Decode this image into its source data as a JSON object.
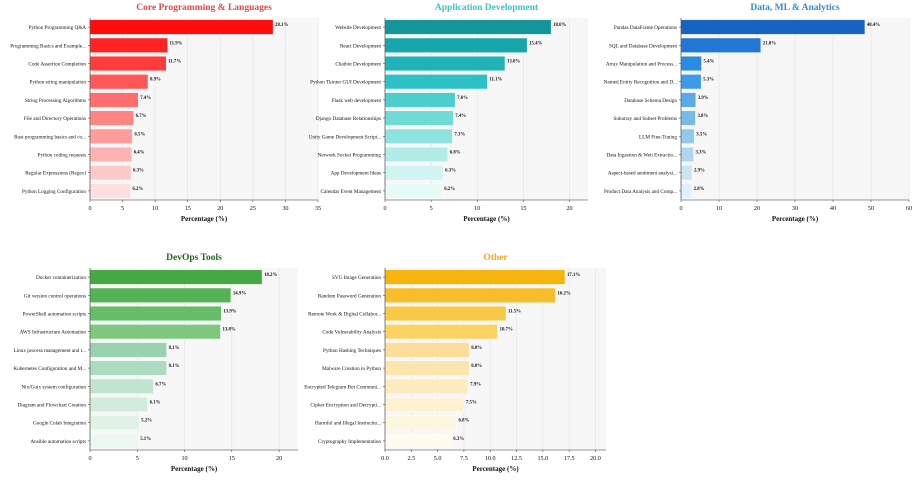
{
  "chart_data": [
    {
      "type": "bar",
      "orientation": "horizontal",
      "title": "Core Programming & Languages",
      "title_color": "#e8474a",
      "xlabel": "Percentage (%)",
      "xlim": [
        0,
        35
      ],
      "xticks": [
        "0",
        "5",
        "10",
        "15",
        "20",
        "25",
        "30",
        "35"
      ],
      "tick_values": [
        0,
        5,
        10,
        15,
        20,
        25,
        30,
        35
      ],
      "categories": [
        "Python Programming Q&A",
        "Programming Basics and Example...",
        "Code Assertion Completion",
        "Python string manipulation",
        "String Processing Algorithms",
        "File and Directory Operations",
        "Rust programming basics and co...",
        "Python coding requests",
        "Regular Expressions (Regex)",
        "Python Logging Configuration"
      ],
      "values": [
        28.1,
        11.9,
        11.7,
        8.9,
        7.4,
        6.7,
        6.5,
        6.4,
        6.3,
        6.2
      ],
      "labels": [
        "28.1%",
        "11.9%",
        "11.7%",
        "8.9%",
        "7.4%",
        "6.7%",
        "6.5%",
        "6.4%",
        "6.3%",
        "6.2%"
      ],
      "colors": [
        "#ff0d0d",
        "#ff2323",
        "#ff3b3b",
        "#ff5757",
        "#ff6e6e",
        "#ff8484",
        "#ff9c9c",
        "#ffb2b2",
        "#ffc9c9",
        "#ffdede"
      ],
      "grid": true
    },
    {
      "type": "bar",
      "orientation": "horizontal",
      "title": "Application Development",
      "title_color": "#3cc4c8",
      "xlabel": "Percentage (%)",
      "xlim": [
        0,
        22
      ],
      "xticks": [
        "0",
        "5",
        "10",
        "15",
        "20"
      ],
      "tick_values": [
        0,
        5,
        10,
        15,
        20
      ],
      "categories": [
        "Website Development",
        "React Development",
        "Chatbot Development",
        "Python Tkinter GUI Development",
        "Flask web development",
        "Django Database Relationships",
        "Unity Game Development Script...",
        "Network Socket Programming",
        "App Development Ideas",
        "Calendar Event Management"
      ],
      "values": [
        18.0,
        15.4,
        13.0,
        11.1,
        7.6,
        7.4,
        7.3,
        6.8,
        6.3,
        6.2
      ],
      "labels": [
        "18.0%",
        "15.4%",
        "13.0%",
        "11.1%",
        "7.6%",
        "7.4%",
        "7.3%",
        "6.8%",
        "6.3%",
        "6.2%"
      ],
      "colors": [
        "#13969b",
        "#17a6ab",
        "#1fb3b8",
        "#2dc1c5",
        "#4ccfcc",
        "#6fdbd6",
        "#8fe3de",
        "#b0ece8",
        "#cff4f1",
        "#e6faf8"
      ],
      "grid": true
    },
    {
      "type": "bar",
      "orientation": "horizontal",
      "title": "Data, ML & Analytics",
      "title_color": "#2f8fd6",
      "xlabel": "Percentage (%)",
      "xlim": [
        0,
        60
      ],
      "xticks": [
        "0",
        "10",
        "20",
        "30",
        "40",
        "50",
        "60"
      ],
      "tick_values": [
        0,
        10,
        20,
        30,
        40,
        50,
        60
      ],
      "categories": [
        "Pandas DataFrame Operations",
        "SQL and Database Development",
        "Array Manipulation and Process...",
        "Named Entity Recognition and D...",
        "Database Schema Design",
        "Subarray and Subset Problems",
        "LLM Fine-Tuning",
        "Data Ingestion & Web Extractio...",
        "Aspect-based sentiment analysi...",
        "Product Data Analysis and Comp..."
      ],
      "values": [
        48.4,
        21.0,
        5.4,
        5.3,
        3.9,
        3.8,
        3.5,
        3.3,
        2.9,
        2.8
      ],
      "labels": [
        "48.4%",
        "21.0%",
        "5.4%",
        "5.3%",
        "3.9%",
        "3.8%",
        "3.5%",
        "3.3%",
        "2.9%",
        "2.8%"
      ],
      "colors": [
        "#1763c2",
        "#2277d6",
        "#2b8ae2",
        "#3c9ae8",
        "#5aaae6",
        "#77b9e8",
        "#93c8ec",
        "#afd6f0",
        "#cbe4f5",
        "#e2f0fa"
      ],
      "grid": true
    },
    {
      "type": "bar",
      "orientation": "horizontal",
      "title": "DevOps Tools",
      "title_color": "#1e6b1e",
      "xlabel": "Percentage (%)",
      "xlim": [
        0,
        22
      ],
      "xticks": [
        "0",
        "5",
        "10",
        "15",
        "20"
      ],
      "tick_values": [
        0,
        5,
        10,
        15,
        20
      ],
      "categories": [
        "Docker containerization",
        "Git version control operations",
        "PowerShell automation scripts",
        "AWS Infrastructure Automation",
        "Linux process management and t...",
        "Kubernetes Configuration and M...",
        "Nix/Guix system configuration",
        "Diagram and Flowchart Creation",
        "Google Colab Integration",
        "Ansible automation scripts"
      ],
      "values": [
        18.2,
        14.9,
        13.9,
        13.8,
        8.1,
        8.1,
        6.7,
        6.1,
        5.2,
        5.1
      ],
      "labels": [
        "18.2%",
        "14.9%",
        "13.9%",
        "13.8%",
        "8.1%",
        "8.1%",
        "6.7%",
        "6.1%",
        "5.2%",
        "5.1%"
      ],
      "colors": [
        "#45a845",
        "#55b355",
        "#67bd67",
        "#7ec87e",
        "#98d2b0",
        "#acdbbf",
        "#c0e4cd",
        "#d2ecdb",
        "#e1f3e7",
        "#edf8f1"
      ],
      "grid": true
    },
    {
      "type": "bar",
      "orientation": "horizontal",
      "title": "Other",
      "title_color": "#f5a623",
      "xlabel": "Percentage (%)",
      "xlim": [
        0,
        21
      ],
      "xticks": [
        "0.0",
        "2.5",
        "5.0",
        "7.5",
        "10.0",
        "12.5",
        "15.0",
        "17.5",
        "20.0"
      ],
      "tick_values": [
        0,
        2.5,
        5,
        7.5,
        10,
        12.5,
        15,
        17.5,
        20
      ],
      "categories": [
        "SVG Image Generation",
        "Random Password Generation",
        "Remote Work & Digital Collabor...",
        "Code Vulnerability Analysis",
        "Python Hashing Techniques",
        "Malware Creation in Python",
        "Encrypted Telegram Bot Communi...",
        "Cipher Encryption and Decrypti...",
        "Harmful and Illegal Instructio...",
        "Cryptography Implementation"
      ],
      "values": [
        17.1,
        16.2,
        11.5,
        10.7,
        8.0,
        8.0,
        7.9,
        7.5,
        6.8,
        6.3
      ],
      "labels": [
        "17.1%",
        "16.2%",
        "11.5%",
        "10.7%",
        "8.0%",
        "8.0%",
        "7.9%",
        "7.5%",
        "6.8%",
        "6.3%"
      ],
      "colors": [
        "#f6b40e",
        "#f8bd2a",
        "#f9c845",
        "#fad362",
        "#fcde9a",
        "#fde6ae",
        "#fdecbe",
        "#fef2d0",
        "#fef7e0",
        "#fffbee"
      ],
      "grid": true
    }
  ]
}
